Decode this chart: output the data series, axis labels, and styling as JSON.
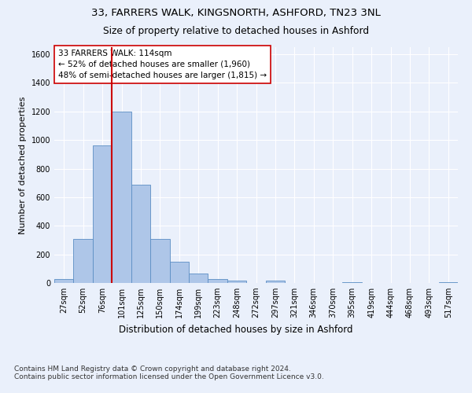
{
  "title1": "33, FARRERS WALK, KINGSNORTH, ASHFORD, TN23 3NL",
  "title2": "Size of property relative to detached houses in Ashford",
  "xlabel": "Distribution of detached houses by size in Ashford",
  "ylabel": "Number of detached properties",
  "footnote": "Contains HM Land Registry data © Crown copyright and database right 2024.\nContains public sector information licensed under the Open Government Licence v3.0.",
  "bin_labels": [
    "27sqm",
    "52sqm",
    "76sqm",
    "101sqm",
    "125sqm",
    "150sqm",
    "174sqm",
    "199sqm",
    "223sqm",
    "248sqm",
    "272sqm",
    "297sqm",
    "321sqm",
    "346sqm",
    "370sqm",
    "395sqm",
    "419sqm",
    "444sqm",
    "468sqm",
    "493sqm",
    "517sqm"
  ],
  "bar_values": [
    30,
    310,
    960,
    1200,
    690,
    310,
    150,
    65,
    30,
    15,
    0,
    15,
    0,
    0,
    0,
    5,
    0,
    0,
    0,
    0,
    5
  ],
  "bar_color": "#aec6e8",
  "bar_edge_color": "#5b8ec4",
  "vline_x_index": 3,
  "vline_color": "#cc0000",
  "annotation_text": "33 FARRERS WALK: 114sqm\n← 52% of detached houses are smaller (1,960)\n48% of semi-detached houses are larger (1,815) →",
  "annotation_box_color": "#ffffff",
  "annotation_box_edge": "#cc0000",
  "ylim": [
    0,
    1650
  ],
  "yticks": [
    0,
    200,
    400,
    600,
    800,
    1000,
    1200,
    1400,
    1600
  ],
  "background_color": "#eaf0fb",
  "plot_background": "#eaf0fb",
  "grid_color": "#ffffff",
  "title1_fontsize": 9.5,
  "title2_fontsize": 8.8,
  "annotation_fontsize": 7.5,
  "xlabel_fontsize": 8.5,
  "ylabel_fontsize": 8,
  "tick_fontsize": 7,
  "footnote_fontsize": 6.5
}
